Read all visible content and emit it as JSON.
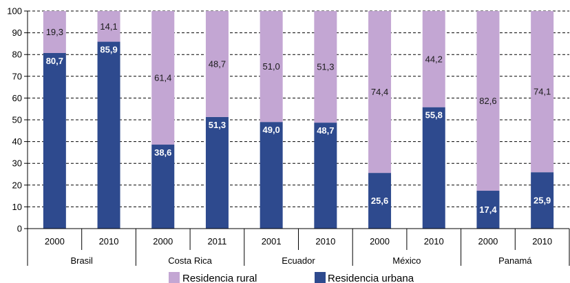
{
  "chart_data": {
    "type": "bar",
    "stacked": true,
    "percent_labels_decimal": "comma",
    "groups": [
      {
        "name": "Brasil",
        "years": [
          "2000",
          "2010"
        ]
      },
      {
        "name": "Costa Rica",
        "years": [
          "2000",
          "2011"
        ]
      },
      {
        "name": "Ecuador",
        "years": [
          "2001",
          "2010"
        ]
      },
      {
        "name": "México",
        "years": [
          "2000",
          "2010"
        ]
      },
      {
        "name": "Panamá",
        "years": [
          "2000",
          "2010"
        ]
      }
    ],
    "categories": [
      "2000",
      "2010",
      "2000",
      "2011",
      "2001",
      "2010",
      "2000",
      "2010",
      "2000",
      "2010"
    ],
    "series": [
      {
        "name": "Residencia urbana",
        "color": "#2e4a8e",
        "values": [
          80.7,
          85.9,
          38.6,
          51.3,
          49.0,
          48.7,
          25.6,
          55.8,
          17.4,
          25.9
        ],
        "labels": [
          "80,7",
          "85,9",
          "38,6",
          "51,3",
          "49,0",
          "48,7",
          "25,6",
          "55,8",
          "17,4",
          "25,9"
        ]
      },
      {
        "name": "Residencia rural",
        "color": "#c3a6d3",
        "values": [
          19.3,
          14.1,
          61.4,
          48.7,
          51.0,
          51.3,
          74.4,
          44.2,
          82.6,
          74.1
        ],
        "labels": [
          "19,3",
          "14,1",
          "61,4",
          "48,7",
          "51,0",
          "51,3",
          "74,4",
          "44,2",
          "82,6",
          "74,1"
        ]
      }
    ],
    "title": "",
    "xlabel": "",
    "ylabel": "",
    "ylim": [
      0,
      100
    ],
    "yticks": [
      "0",
      "10",
      "20",
      "30",
      "40",
      "50",
      "60",
      "70",
      "80",
      "90",
      "100"
    ],
    "grid": "horizontal-dashed",
    "legend": {
      "position": "bottom",
      "items": [
        {
          "name": "Residencia rural",
          "color": "#c3a6d3"
        },
        {
          "name": "Residencia urbana",
          "color": "#2e4a8e"
        }
      ]
    }
  }
}
